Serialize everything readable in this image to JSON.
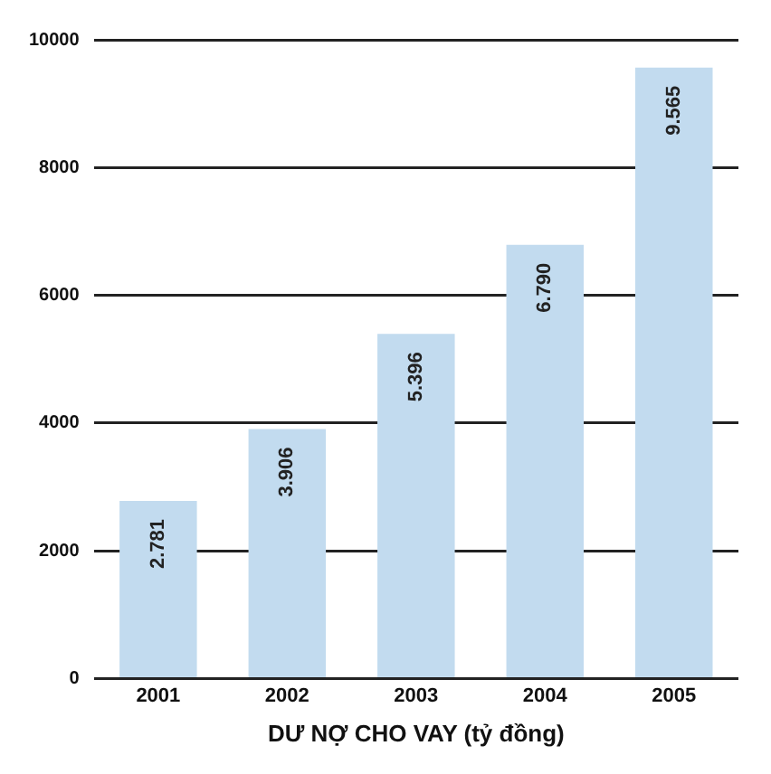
{
  "chart_data": {
    "type": "bar",
    "xlabel": "DƯ NỢ CHO VAY (tỷ đồng)",
    "categories": [
      "2001",
      "2002",
      "2003",
      "2004",
      "2005"
    ],
    "values": [
      2781,
      3906,
      5396,
      6790,
      9565
    ],
    "value_labels": [
      "2.781",
      "3.906",
      "5.396",
      "6.790",
      "9.565"
    ],
    "color": "#c2dbef",
    "ylim": [
      0,
      10000
    ],
    "yticks": [
      0,
      2000,
      4000,
      6000,
      8000,
      10000
    ],
    "grid": "y",
    "legend": false
  }
}
